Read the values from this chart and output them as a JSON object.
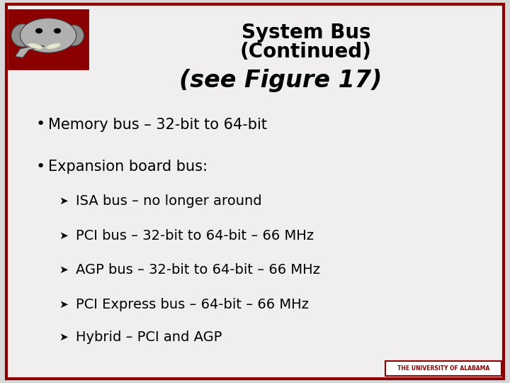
{
  "title_line1": "System Bus",
  "title_line2": "(Continued)",
  "subtitle": "(see Figure 17)",
  "bullet1": "Memory bus – 32-bit to 64-bit",
  "bullet2": "Expansion board bus:",
  "sub_bullets": [
    "ISA bus – no longer around",
    "PCI bus – 32-bit to 64-bit – 66 MHz",
    "AGP bus – 32-bit to 64-bit – 66 MHz",
    "PCI Express bus – 64-bit – 66 MHz",
    "Hybrid – PCI and AGP"
  ],
  "bg_color": "#d8d8d8",
  "slide_bg": "#f0eeee",
  "border_color": "#8b0000",
  "title_color": "#000000",
  "text_color": "#000000",
  "logo_bg": "#8b0000",
  "footer_text": "THE UNIVERSITY OF ALABAMA",
  "footer_color": "#8b0000",
  "title_fontsize": 20,
  "subtitle_fontsize": 24,
  "body_fontsize": 15,
  "sub_fontsize": 14
}
